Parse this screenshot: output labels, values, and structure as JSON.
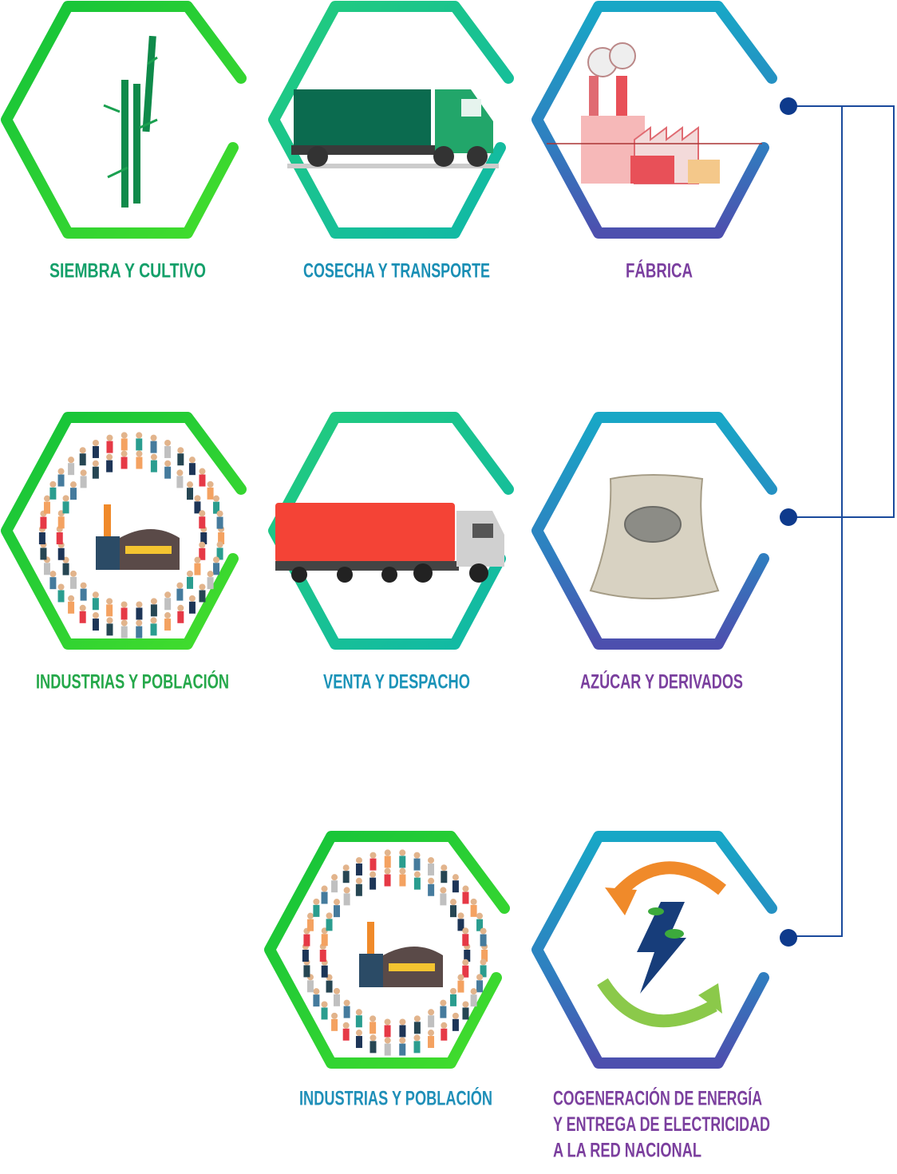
{
  "nodes": [
    {
      "label": "SIEMBRA Y CULTIVO"
    },
    {
      "label": "COSECHA Y TRANSPORTE"
    },
    {
      "label": "FÁBRICA"
    },
    {
      "label": "INDUSTRIAS Y POBLACIÓN"
    },
    {
      "label": "VENTA Y DESPACHO"
    },
    {
      "label": "AZÚCAR Y DERIVADOS"
    },
    {
      "label": "INDUSTRIAS Y POBLACIÓN"
    },
    {
      "label": [
        "COGENERACIÓN DE ENERGÍA",
        "Y ENTREGA DE ELECTRICIDAD",
        "A LA RED NACIONAL"
      ]
    }
  ]
}
